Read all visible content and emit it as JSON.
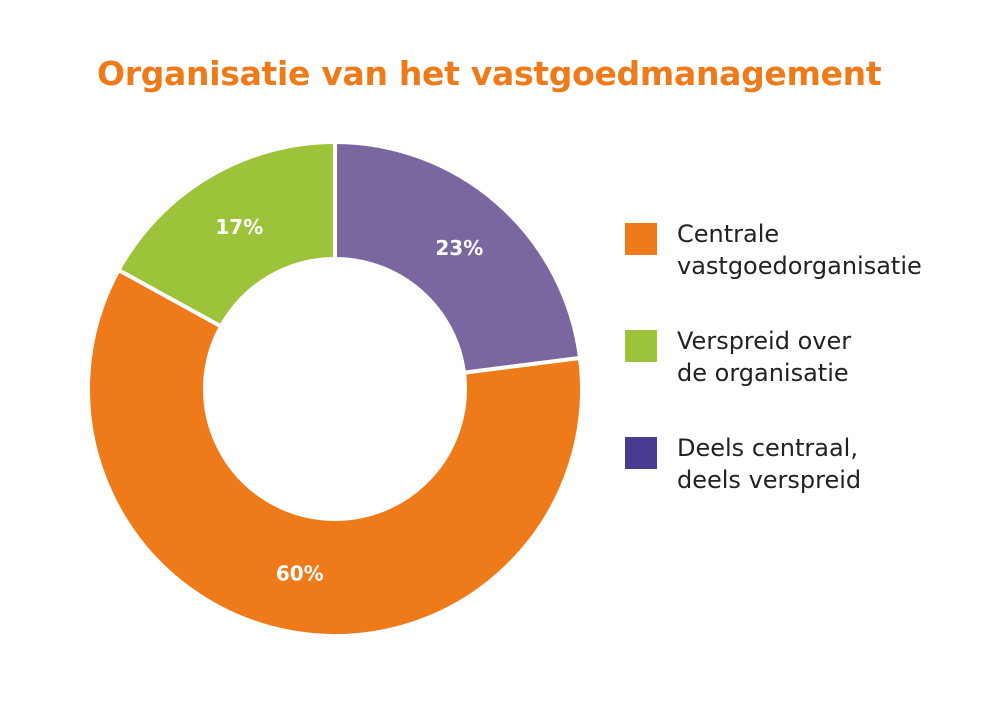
{
  "chart_data": {
    "type": "pie",
    "title": "Organisatie van het vastgoedmanagement",
    "donut": true,
    "legend_position": "right",
    "slices": [
      {
        "name": "Deels centraal, deels verspreid",
        "value": 23,
        "label": "23%",
        "color": "#7b67a0",
        "legend_color": "#473c92"
      },
      {
        "name": "Centrale vastgoedorganisatie",
        "value": 60,
        "label": "60%",
        "color": "#ef7a1a",
        "legend_color": "#ef7a1a"
      },
      {
        "name": "Verspreid over de organisatie",
        "value": 17,
        "label": "17%",
        "color": "#9cc33a",
        "legend_color": "#9cc33a"
      }
    ],
    "legend": [
      {
        "lines": [
          "Centrale",
          "vastgoedorganisatie"
        ],
        "color": "#ef7a1a"
      },
      {
        "lines": [
          "Verspreid over",
          "de organisatie"
        ],
        "color": "#9cc33a"
      },
      {
        "lines": [
          "Deels centraal,",
          "deels verspreid"
        ],
        "color": "#473c92"
      }
    ]
  }
}
